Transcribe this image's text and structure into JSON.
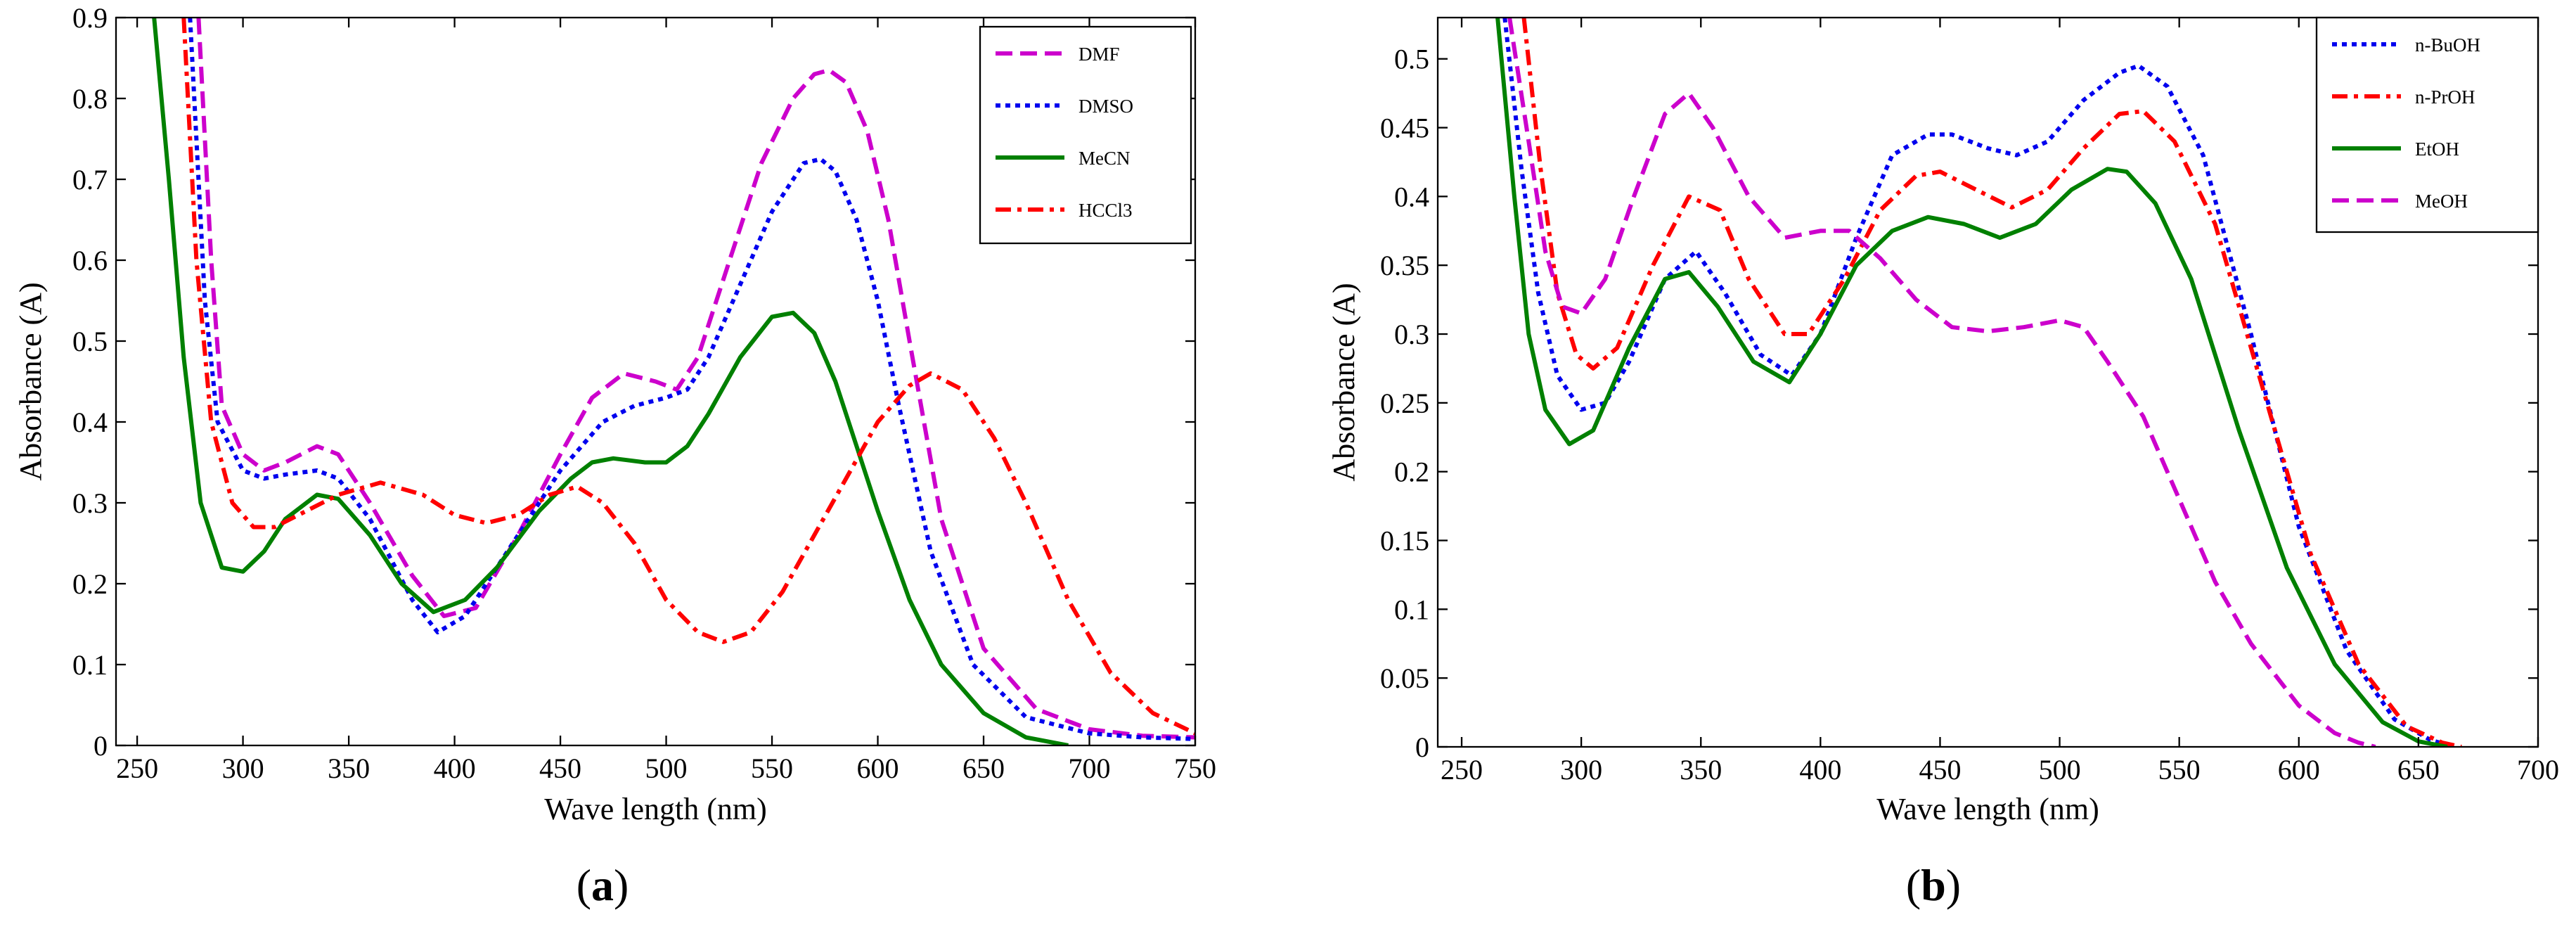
{
  "chart_data": [
    {
      "id": "a",
      "type": "line",
      "panel_label": "(a)",
      "panel_letter": "a",
      "xlabel": "Wave length (nm)",
      "ylabel": "Absorbance (A)",
      "xlim": [
        240,
        750
      ],
      "ylim": [
        0,
        0.9
      ],
      "xticks": [
        250,
        300,
        350,
        400,
        450,
        500,
        550,
        600,
        650,
        700,
        750
      ],
      "yticks": [
        0,
        0.1,
        0.2,
        0.3,
        0.4,
        0.5,
        0.6,
        0.7,
        0.8,
        0.9
      ],
      "legend_position": "top-right",
      "series": [
        {
          "name": "DMF",
          "color": "#CC00CC",
          "dash": "dashed",
          "x": [
            279,
            285,
            290,
            300,
            310,
            320,
            335,
            345,
            360,
            380,
            395,
            410,
            430,
            450,
            465,
            480,
            495,
            505,
            515,
            530,
            545,
            560,
            570,
            577,
            585,
            595,
            605,
            615,
            630,
            650,
            675,
            700,
            725,
            750
          ],
          "y": [
            0.9,
            0.6,
            0.42,
            0.36,
            0.34,
            0.35,
            0.37,
            0.36,
            0.3,
            0.21,
            0.16,
            0.17,
            0.26,
            0.36,
            0.43,
            0.46,
            0.45,
            0.44,
            0.48,
            0.6,
            0.72,
            0.8,
            0.83,
            0.835,
            0.82,
            0.76,
            0.65,
            0.5,
            0.28,
            0.12,
            0.045,
            0.02,
            0.012,
            0.01
          ]
        },
        {
          "name": "DMSO",
          "color": "#0000EE",
          "dash": "dotted",
          "x": [
            275,
            282,
            288,
            300,
            310,
            320,
            335,
            345,
            360,
            380,
            392,
            405,
            425,
            450,
            470,
            485,
            500,
            510,
            520,
            535,
            550,
            565,
            573,
            580,
            590,
            600,
            610,
            625,
            645,
            670,
            700,
            725,
            750
          ],
          "y": [
            0.9,
            0.55,
            0.4,
            0.34,
            0.33,
            0.335,
            0.34,
            0.33,
            0.28,
            0.18,
            0.14,
            0.16,
            0.24,
            0.34,
            0.4,
            0.42,
            0.43,
            0.44,
            0.48,
            0.57,
            0.66,
            0.72,
            0.725,
            0.71,
            0.65,
            0.55,
            0.42,
            0.24,
            0.1,
            0.035,
            0.015,
            0.01,
            0.008
          ]
        },
        {
          "name": "MeCN",
          "color": "#008000",
          "dash": "solid",
          "x": [
            258,
            265,
            272,
            280,
            290,
            300,
            310,
            320,
            335,
            345,
            360,
            375,
            390,
            405,
            420,
            440,
            455,
            465,
            475,
            490,
            500,
            510,
            520,
            535,
            550,
            560,
            570,
            580,
            590,
            600,
            615,
            630,
            650,
            670,
            690
          ],
          "y": [
            0.9,
            0.7,
            0.48,
            0.3,
            0.22,
            0.215,
            0.24,
            0.28,
            0.31,
            0.305,
            0.26,
            0.2,
            0.165,
            0.18,
            0.22,
            0.29,
            0.33,
            0.35,
            0.355,
            0.35,
            0.35,
            0.37,
            0.41,
            0.48,
            0.53,
            0.535,
            0.51,
            0.45,
            0.37,
            0.29,
            0.18,
            0.1,
            0.04,
            0.01,
            0
          ]
        },
        {
          "name": "HCCl3",
          "color": "#FF0000",
          "dash": "dashdot",
          "x": [
            272,
            278,
            285,
            295,
            305,
            315,
            330,
            345,
            365,
            385,
            400,
            415,
            430,
            445,
            458,
            470,
            485,
            500,
            515,
            527,
            540,
            555,
            570,
            585,
            600,
            615,
            625,
            640,
            655,
            670,
            690,
            710,
            730,
            750
          ],
          "y": [
            0.9,
            0.6,
            0.4,
            0.3,
            0.27,
            0.27,
            0.29,
            0.31,
            0.325,
            0.31,
            0.285,
            0.275,
            0.285,
            0.31,
            0.32,
            0.3,
            0.25,
            0.18,
            0.14,
            0.128,
            0.14,
            0.19,
            0.26,
            0.33,
            0.4,
            0.445,
            0.46,
            0.44,
            0.38,
            0.3,
            0.18,
            0.09,
            0.04,
            0.015
          ]
        }
      ]
    },
    {
      "id": "b",
      "type": "line",
      "panel_label": "(b)",
      "panel_letter": "b",
      "xlabel": "Wave length (nm)",
      "ylabel": "Absorbance (A)",
      "xlim": [
        240,
        700
      ],
      "ylim": [
        0,
        0.53
      ],
      "xticks": [
        250,
        300,
        350,
        400,
        450,
        500,
        550,
        600,
        650,
        700
      ],
      "yticks": [
        0,
        0.05,
        0.1,
        0.15,
        0.2,
        0.25,
        0.3,
        0.35,
        0.4,
        0.45,
        0.5
      ],
      "legend_position": "top-right",
      "series": [
        {
          "name": "n-BuOH",
          "color": "#0000EE",
          "dash": "dotted",
          "x": [
            268,
            275,
            282,
            290,
            300,
            310,
            320,
            335,
            348,
            360,
            375,
            388,
            400,
            415,
            430,
            445,
            455,
            470,
            482,
            495,
            510,
            525,
            533,
            545,
            560,
            580,
            600,
            620,
            640,
            655,
            665
          ],
          "y": [
            0.53,
            0.42,
            0.33,
            0.27,
            0.245,
            0.25,
            0.28,
            0.34,
            0.36,
            0.33,
            0.285,
            0.27,
            0.3,
            0.37,
            0.43,
            0.445,
            0.445,
            0.435,
            0.43,
            0.44,
            0.47,
            0.49,
            0.495,
            0.48,
            0.43,
            0.3,
            0.16,
            0.07,
            0.02,
            0.005,
            0
          ]
        },
        {
          "name": "n-PrOH",
          "color": "#FF0000",
          "dash": "dashdot",
          "x": [
            276,
            283,
            290,
            298,
            305,
            315,
            330,
            345,
            358,
            370,
            385,
            395,
            410,
            425,
            440,
            450,
            465,
            480,
            495,
            510,
            525,
            535,
            548,
            565,
            585,
            605,
            625,
            645,
            660,
            668
          ],
          "y": [
            0.53,
            0.42,
            0.33,
            0.285,
            0.275,
            0.29,
            0.35,
            0.4,
            0.39,
            0.34,
            0.3,
            0.3,
            0.34,
            0.39,
            0.415,
            0.418,
            0.405,
            0.392,
            0.405,
            0.435,
            0.46,
            0.462,
            0.44,
            0.38,
            0.26,
            0.14,
            0.06,
            0.015,
            0.003,
            0
          ]
        },
        {
          "name": "EtOH",
          "color": "#008000",
          "dash": "solid",
          "x": [
            265,
            272,
            278,
            285,
            295,
            305,
            320,
            335,
            345,
            357,
            372,
            387,
            400,
            415,
            430,
            445,
            460,
            475,
            490,
            505,
            520,
            528,
            540,
            555,
            575,
            595,
            615,
            635,
            650,
            662
          ],
          "y": [
            0.53,
            0.4,
            0.3,
            0.245,
            0.22,
            0.23,
            0.29,
            0.34,
            0.345,
            0.32,
            0.28,
            0.265,
            0.3,
            0.35,
            0.375,
            0.385,
            0.38,
            0.37,
            0.38,
            0.405,
            0.42,
            0.418,
            0.395,
            0.34,
            0.23,
            0.13,
            0.06,
            0.018,
            0.004,
            0
          ]
        },
        {
          "name": "MeOH",
          "color": "#CC00CC",
          "dash": "dashed",
          "x": [
            270,
            278,
            285,
            292,
            300,
            310,
            322,
            335,
            345,
            355,
            370,
            385,
            400,
            412,
            425,
            440,
            455,
            470,
            485,
            500,
            510,
            520,
            535,
            550,
            565,
            580,
            600,
            615,
            625,
            632
          ],
          "y": [
            0.53,
            0.44,
            0.36,
            0.32,
            0.315,
            0.34,
            0.4,
            0.46,
            0.475,
            0.45,
            0.4,
            0.37,
            0.375,
            0.375,
            0.355,
            0.325,
            0.305,
            0.302,
            0.305,
            0.31,
            0.305,
            0.28,
            0.24,
            0.18,
            0.12,
            0.075,
            0.03,
            0.01,
            0.003,
            0
          ]
        }
      ]
    }
  ]
}
